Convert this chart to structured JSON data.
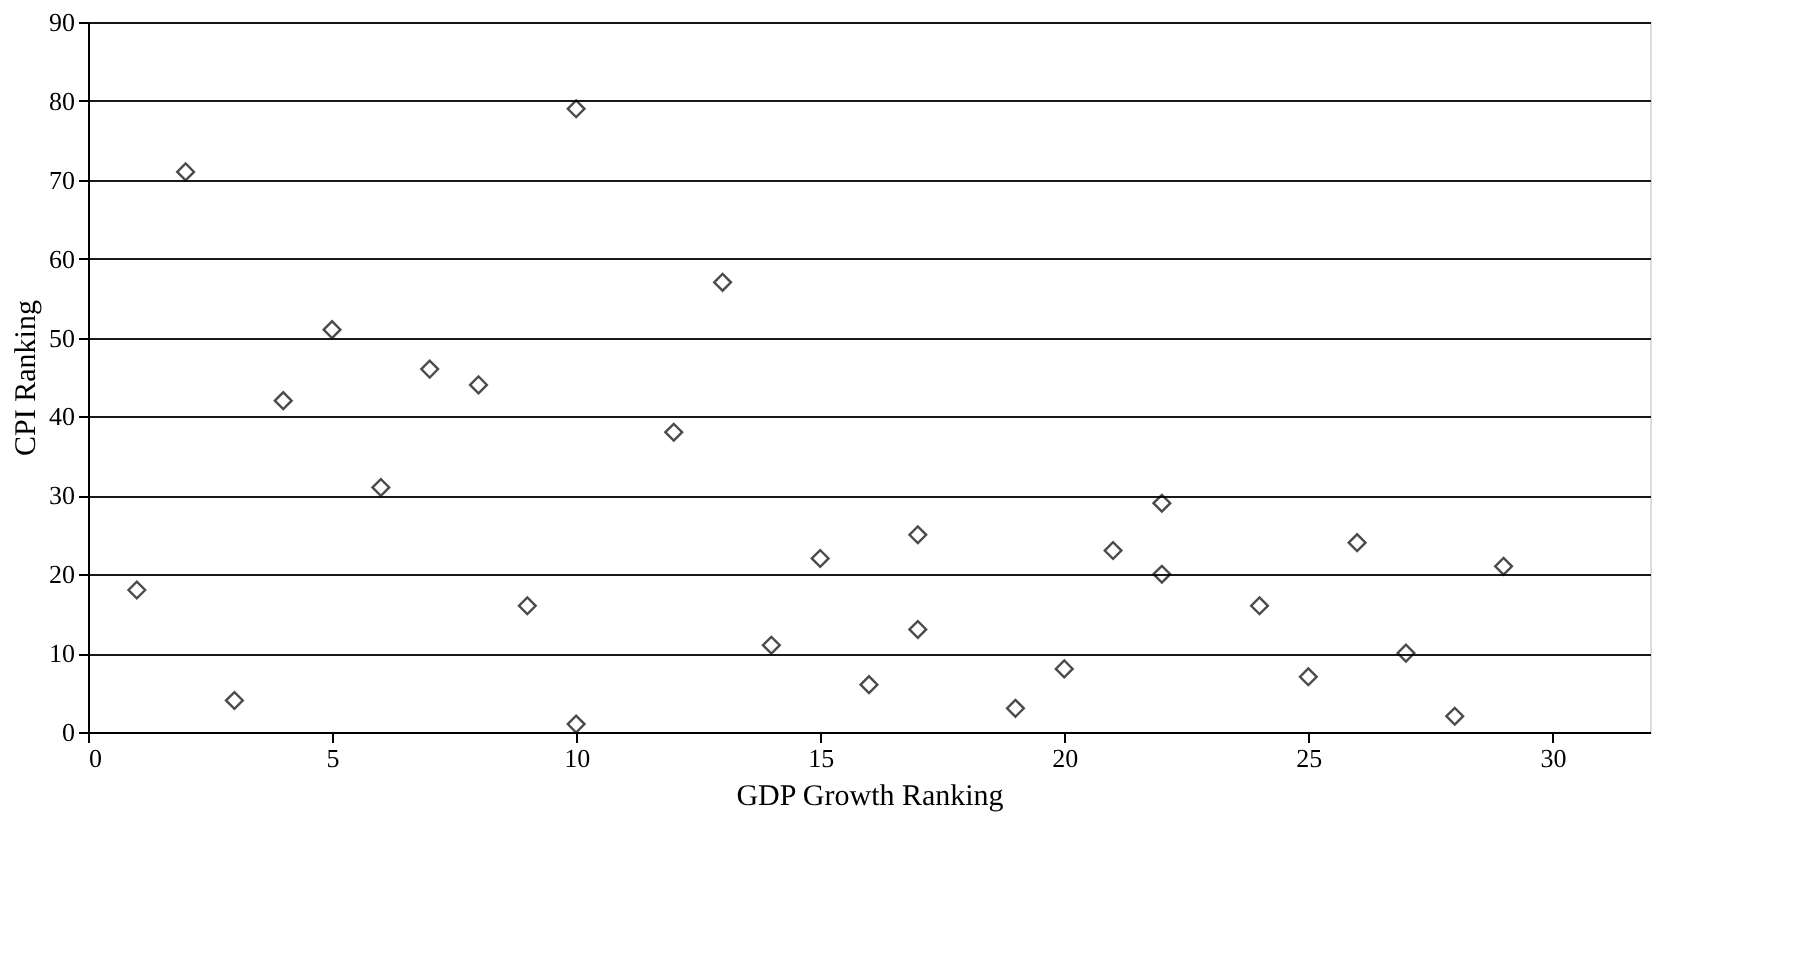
{
  "chart_data": {
    "type": "scatter",
    "xlabel": "GDP Growth Ranking",
    "ylabel": "CPI Ranking",
    "x": [
      1,
      2,
      3,
      4,
      5,
      6,
      7,
      8,
      9,
      10,
      10,
      12,
      13,
      14,
      15,
      16,
      17,
      17,
      19,
      20,
      21,
      22,
      22,
      24,
      25,
      26,
      27,
      28,
      29
    ],
    "values": [
      18,
      71,
      4,
      42,
      51,
      31,
      46,
      44,
      16,
      79,
      1,
      38,
      57,
      11,
      22,
      6,
      25,
      13,
      3,
      8,
      23,
      29,
      20,
      16,
      7,
      24,
      10,
      2,
      21
    ],
    "color": "#000000",
    "marker": "diamond",
    "xlim": [
      0,
      32
    ],
    "ylim": [
      0,
      90
    ],
    "xticks": [
      0,
      5,
      10,
      15,
      20,
      25,
      30
    ],
    "yticks": [
      0,
      10,
      20,
      30,
      40,
      50,
      60,
      70,
      80,
      90
    ],
    "grid": "y"
  }
}
